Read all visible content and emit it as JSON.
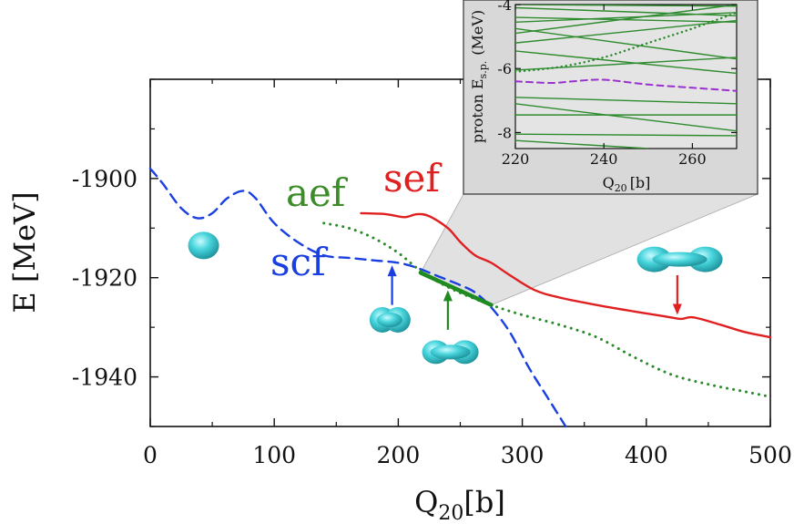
{
  "chart_data": [
    {
      "type": "line",
      "title": "",
      "xlabel": "Q",
      "xlabel_sub": "20",
      "xlabel_unit": "[b]",
      "ylabel": "E [MeV]",
      "xlim": [
        0,
        500
      ],
      "ylim": [
        -1950,
        -1880
      ],
      "x_ticks": [
        0,
        100,
        200,
        300,
        400,
        500
      ],
      "y_ticks": [
        -1940,
        -1920,
        -1900
      ],
      "x_tick_labels": [
        "0",
        "100",
        "200",
        "300",
        "400",
        "500"
      ],
      "y_tick_labels": [
        "-1940",
        "-1920",
        "-1900"
      ],
      "series": [
        {
          "name": "scf",
          "color": "#1a3fe0",
          "style": "dashed",
          "points": [
            [
              0,
              -1898
            ],
            [
              10,
              -1901
            ],
            [
              25,
              -1906
            ],
            [
              38,
              -1908
            ],
            [
              50,
              -1907
            ],
            [
              62,
              -1904
            ],
            [
              75,
              -1902.5
            ],
            [
              85,
              -1904
            ],
            [
              100,
              -1909
            ],
            [
              120,
              -1913
            ],
            [
              140,
              -1915.5
            ],
            [
              160,
              -1916
            ],
            [
              180,
              -1916.5
            ],
            [
              200,
              -1917
            ],
            [
              215,
              -1918
            ],
            [
              230,
              -1919.5
            ],
            [
              250,
              -1921.5
            ],
            [
              262,
              -1923
            ],
            [
              275,
              -1926
            ],
            [
              290,
              -1931
            ],
            [
              305,
              -1938
            ],
            [
              320,
              -1944
            ],
            [
              335,
              -1950
            ]
          ]
        },
        {
          "name": "aef",
          "color": "#2a8a2a",
          "style": "dotted",
          "points": [
            [
              140,
              -1909
            ],
            [
              160,
              -1910
            ],
            [
              180,
              -1912
            ],
            [
              200,
              -1915
            ],
            [
              220,
              -1919
            ],
            [
              245,
              -1922.5
            ],
            [
              275,
              -1925.5
            ],
            [
              300,
              -1927.5
            ],
            [
              330,
              -1929.5
            ],
            [
              360,
              -1932
            ],
            [
              390,
              -1936
            ],
            [
              420,
              -1939.5
            ],
            [
              450,
              -1941.5
            ],
            [
              480,
              -1943
            ],
            [
              500,
              -1944
            ]
          ]
        },
        {
          "name": "sef",
          "color": "#e02020",
          "style": "solid",
          "points": [
            [
              170,
              -1907
            ],
            [
              190,
              -1907.2
            ],
            [
              205,
              -1907.8
            ],
            [
              215,
              -1907.2
            ],
            [
              225,
              -1907.6
            ],
            [
              240,
              -1910
            ],
            [
              250,
              -1912.8
            ],
            [
              262,
              -1915.5
            ],
            [
              275,
              -1917
            ],
            [
              290,
              -1919.5
            ],
            [
              310,
              -1922.5
            ],
            [
              330,
              -1924
            ],
            [
              360,
              -1925.5
            ],
            [
              390,
              -1926.8
            ],
            [
              415,
              -1927.8
            ],
            [
              428,
              -1928.3
            ],
            [
              438,
              -1928
            ],
            [
              460,
              -1929.5
            ],
            [
              480,
              -1931
            ],
            [
              500,
              -1932
            ]
          ]
        },
        {
          "name": "transition",
          "color": "#1f8a1f",
          "style": "solid-thick",
          "points": [
            [
              218,
              -1919
            ],
            [
              275,
              -1925.5
            ]
          ]
        }
      ],
      "annotations": {
        "arrows": [
          {
            "color": "#1a3fe0",
            "x": 195,
            "y_tip": -1917.5,
            "y_tail": -1925.5
          },
          {
            "color": "#1f8a1f",
            "x": 240,
            "y_tip": -1922.5,
            "y_tail": -1930.5
          },
          {
            "color": "#e02020",
            "x": 425,
            "y_tip": -1927.5,
            "y_tail": -1919.5
          }
        ],
        "shapes": [
          {
            "kind": "sphere",
            "x": 43,
            "y": -1913.5
          },
          {
            "kind": "dumbbell-small",
            "x": 193,
            "y": -1928.5
          },
          {
            "kind": "dumbbell-mid",
            "x": 242,
            "y": -1935
          },
          {
            "kind": "dumbbell-long",
            "x": 427,
            "y": -1916.3
          }
        ]
      },
      "series_labels": [
        "scf",
        "aef",
        "sef"
      ]
    },
    {
      "type": "line",
      "title": "inset",
      "xlabel": "Q",
      "xlabel_sub": "20",
      "xlabel_unit": "[b]",
      "ylabel": "proton E",
      "ylabel_sub": "s.p.",
      "ylabel_unit": "(MeV)",
      "xlim": [
        220,
        270
      ],
      "ylim": [
        -8.5,
        -4
      ],
      "x_ticks": [
        220,
        240,
        260
      ],
      "y_ticks": [
        -8,
        -6,
        -4
      ],
      "x_tick_labels": [
        "220",
        "240",
        "260"
      ],
      "y_tick_labels": [
        "-8",
        "-6",
        "-4"
      ],
      "levels": [
        [
          [
            220,
            -4.0
          ],
          [
            270,
            -4.05
          ]
        ],
        [
          [
            220,
            -4.1
          ],
          [
            270,
            -4.35
          ]
        ],
        [
          [
            220,
            -4.4
          ],
          [
            270,
            -4.55
          ]
        ],
        [
          [
            220,
            -4.55
          ],
          [
            270,
            -4.25
          ]
        ],
        [
          [
            220,
            -4.9
          ],
          [
            270,
            -4.0
          ]
        ],
        [
          [
            220,
            -5.2
          ],
          [
            270,
            -4.5
          ]
        ],
        [
          [
            220,
            -4.75
          ],
          [
            270,
            -5.7
          ]
        ],
        [
          [
            220,
            -5.45
          ],
          [
            270,
            -6.15
          ]
        ],
        [
          [
            220,
            -6.05
          ],
          [
            270,
            -5.65
          ]
        ],
        [
          [
            220,
            -6.9
          ],
          [
            270,
            -7.1
          ]
        ],
        [
          [
            220,
            -7.1
          ],
          [
            270,
            -7.95
          ]
        ],
        [
          [
            220,
            -7.45
          ],
          [
            270,
            -7.45
          ]
        ],
        [
          [
            220,
            -8.05
          ],
          [
            270,
            -8.1
          ]
        ],
        [
          [
            220,
            -8.25
          ],
          [
            250,
            -8.5
          ]
        ]
      ],
      "level_color": "#2e8b2e",
      "series": [
        {
          "name": "dotted-level",
          "color": "#2a8a2a",
          "style": "dotted",
          "points": [
            [
              220,
              -6.1
            ],
            [
              230,
              -5.95
            ],
            [
              240,
              -5.65
            ],
            [
              250,
              -5.2
            ],
            [
              260,
              -4.75
            ],
            [
              270,
              -4.25
            ]
          ]
        },
        {
          "name": "dashed-level",
          "color": "#9b30d0",
          "style": "dashed",
          "points": [
            [
              220,
              -6.4
            ],
            [
              228,
              -6.45
            ],
            [
              233,
              -6.4
            ],
            [
              240,
              -6.35
            ],
            [
              250,
              -6.5
            ],
            [
              260,
              -6.6
            ],
            [
              270,
              -6.7
            ]
          ]
        }
      ]
    }
  ],
  "colors": {
    "scf": "#1a3fe0",
    "aef": "#3d8c2a",
    "sef": "#e02020",
    "shape_fill": "#40c8d0",
    "inset_bg": "#e8e8e8"
  }
}
